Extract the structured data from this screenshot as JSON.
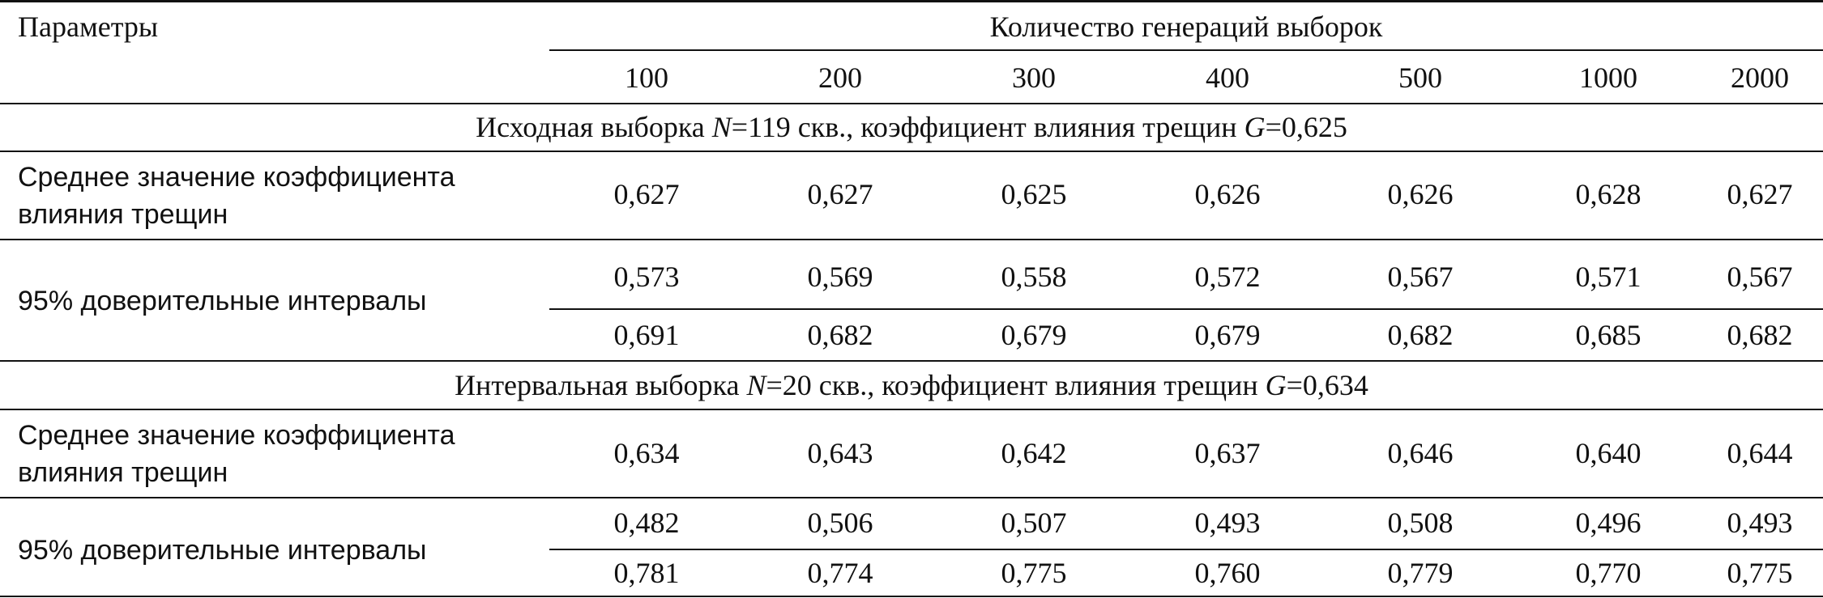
{
  "header": {
    "params_label": "Параметры",
    "group_label": "Количество генераций выборок",
    "columns": [
      "100",
      "200",
      "300",
      "400",
      "500",
      "1000",
      "2000"
    ]
  },
  "section1": {
    "title_pre": "Исходная выборка ",
    "title_n_var": "N",
    "title_mid": "=119 скв., коэффициент влияния трещин ",
    "title_g_var": "G",
    "title_post": "=0,625",
    "mean_label_line1": "Среднее значение коэффициента",
    "mean_label_line2": "влияния трещин",
    "mean_values": [
      "0,627",
      "0,627",
      "0,625",
      "0,626",
      "0,626",
      "0,628",
      "0,627"
    ],
    "ci_label": "95% доверительные интервалы",
    "ci_low": [
      "0,573",
      "0,569",
      "0,558",
      "0,572",
      "0,567",
      "0,571",
      "0,567"
    ],
    "ci_high": [
      "0,691",
      "0,682",
      "0,679",
      "0,679",
      "0,682",
      "0,685",
      "0,682"
    ]
  },
  "section2": {
    "title_pre": "Интервальная выборка ",
    "title_n_var": "N",
    "title_mid": "=20 скв., коэффициент влияния трещин ",
    "title_g_var": "G",
    "title_post": "=0,634",
    "mean_label_line1": "Среднее значение коэффициента",
    "mean_label_line2": "влияния трещин",
    "mean_values": [
      "0,634",
      "0,643",
      "0,642",
      "0,637",
      "0,646",
      "0,640",
      "0,644"
    ],
    "ci_label": "95% доверительные интервалы",
    "ci_low": [
      "0,482",
      "0,506",
      "0,507",
      "0,493",
      "0,508",
      "0,496",
      "0,493"
    ],
    "ci_high": [
      "0,781",
      "0,774",
      "0,775",
      "0,760",
      "0,779",
      "0,770",
      "0,775"
    ]
  }
}
